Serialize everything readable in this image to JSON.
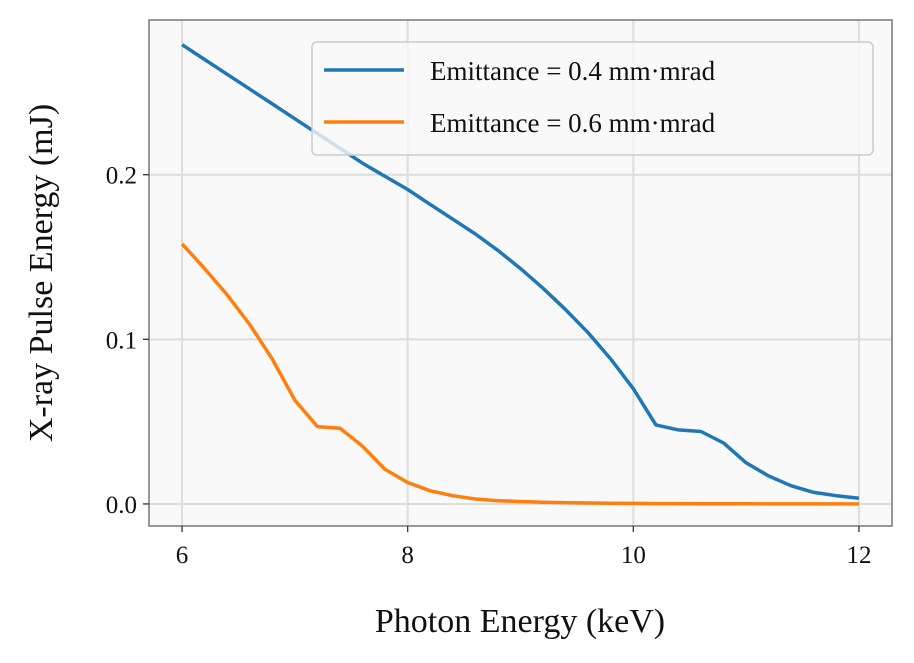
{
  "chart_data": {
    "type": "line",
    "title": "",
    "xlabel": "Photon Energy (keV)",
    "ylabel": "X-ray Pulse Energy (mJ)",
    "xlim": [
      5.707,
      12.293
    ],
    "ylim": [
      -0.0134,
      0.294
    ],
    "xticks": [
      6,
      8,
      10,
      12
    ],
    "xtick_labels": [
      "6",
      "8",
      "10",
      "12"
    ],
    "yticks": [
      0.0,
      0.1,
      0.2
    ],
    "ytick_labels": [
      "0.0",
      "0.1",
      "0.2"
    ],
    "grid": true,
    "legend_position": "top-right",
    "x": [
      6.0,
      6.2,
      6.4,
      6.6,
      6.8,
      7.0,
      7.2,
      7.4,
      7.6,
      7.8,
      8.0,
      8.2,
      8.4,
      8.6,
      8.8,
      9.0,
      9.2,
      9.4,
      9.6,
      9.8,
      10.0,
      10.2,
      10.4,
      10.6,
      10.8,
      11.0,
      11.2,
      11.4,
      11.6,
      11.8,
      12.0
    ],
    "series": [
      {
        "name": "Emittance = 0.4 mm·mrad",
        "color": "#1f77b4",
        "values": [
          0.279,
          0.27,
          0.261,
          0.252,
          0.243,
          0.234,
          0.225,
          0.216,
          0.207,
          0.199,
          0.191,
          0.182,
          0.173,
          0.164,
          0.154,
          0.143,
          0.131,
          0.118,
          0.104,
          0.088,
          0.07,
          0.048,
          0.045,
          0.044,
          0.037,
          0.025,
          0.017,
          0.011,
          0.007,
          0.005,
          0.0035
        ]
      },
      {
        "name": "Emittance = 0.6 mm·mrad",
        "color": "#ff7f0e",
        "values": [
          0.158,
          0.143,
          0.127,
          0.109,
          0.088,
          0.063,
          0.047,
          0.046,
          0.035,
          0.021,
          0.013,
          0.008,
          0.005,
          0.003,
          0.002,
          0.0015,
          0.001,
          0.0008,
          0.0006,
          0.0004,
          0.0003,
          0.0002,
          0.0002,
          0.0001,
          0.0001,
          0.0001,
          0.0,
          0.0,
          0.0,
          0.0,
          0.0
        ]
      }
    ]
  }
}
